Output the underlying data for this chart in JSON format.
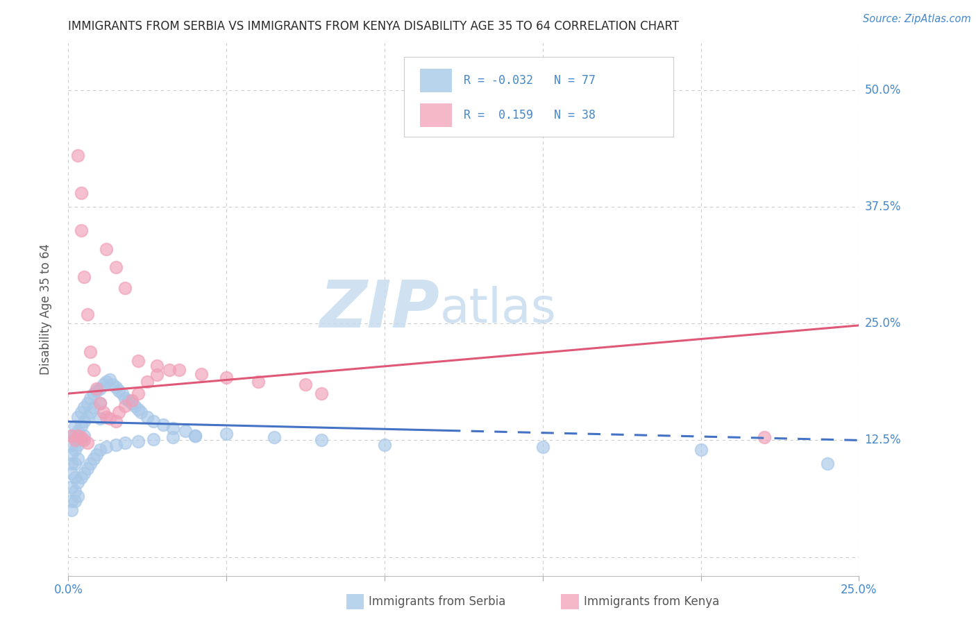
{
  "title": "IMMIGRANTS FROM SERBIA VS IMMIGRANTS FROM KENYA DISABILITY AGE 35 TO 64 CORRELATION CHART",
  "source": "Source: ZipAtlas.com",
  "ylabel": "Disability Age 35 to 64",
  "xlim": [
    0.0,
    0.25
  ],
  "ylim": [
    -0.02,
    0.55
  ],
  "ytick_positions": [
    0.0,
    0.125,
    0.25,
    0.375,
    0.5
  ],
  "ytick_labels": [
    "",
    "12.5%",
    "25.0%",
    "37.5%",
    "50.0%"
  ],
  "series": [
    {
      "name": "Immigrants from Serbia",
      "scatter_color": "#a8c8e8",
      "R": -0.032,
      "N": 77,
      "trend_color": "#4472c4",
      "trend_y0": 0.145,
      "trend_y1": 0.125,
      "trend_solid_end": 0.12,
      "legend_color": "#b8d4ec"
    },
    {
      "name": "Immigrants from Kenya",
      "scatter_color": "#f0a0b8",
      "R": 0.159,
      "N": 38,
      "trend_color": "#e05878",
      "trend_y0": 0.175,
      "trend_y1": 0.248,
      "legend_color": "#f4b8c8"
    }
  ],
  "serbia_x": [
    0.001,
    0.001,
    0.001,
    0.001,
    0.001,
    0.001,
    0.002,
    0.002,
    0.002,
    0.002,
    0.002,
    0.003,
    0.003,
    0.003,
    0.003,
    0.004,
    0.004,
    0.004,
    0.005,
    0.005,
    0.005,
    0.006,
    0.006,
    0.007,
    0.007,
    0.008,
    0.008,
    0.009,
    0.01,
    0.01,
    0.01,
    0.011,
    0.012,
    0.013,
    0.014,
    0.015,
    0.016,
    0.017,
    0.018,
    0.019,
    0.02,
    0.021,
    0.022,
    0.023,
    0.025,
    0.027,
    0.03,
    0.033,
    0.037,
    0.04,
    0.001,
    0.001,
    0.002,
    0.002,
    0.003,
    0.003,
    0.004,
    0.005,
    0.006,
    0.007,
    0.008,
    0.009,
    0.01,
    0.012,
    0.015,
    0.018,
    0.022,
    0.027,
    0.033,
    0.04,
    0.05,
    0.065,
    0.08,
    0.1,
    0.15,
    0.2,
    0.24
  ],
  "serbia_y": [
    0.13,
    0.12,
    0.11,
    0.1,
    0.09,
    0.075,
    0.14,
    0.13,
    0.115,
    0.1,
    0.085,
    0.15,
    0.135,
    0.12,
    0.105,
    0.155,
    0.14,
    0.125,
    0.16,
    0.145,
    0.13,
    0.165,
    0.15,
    0.17,
    0.155,
    0.175,
    0.16,
    0.178,
    0.18,
    0.165,
    0.148,
    0.185,
    0.188,
    0.19,
    0.185,
    0.182,
    0.178,
    0.175,
    0.17,
    0.168,
    0.165,
    0.162,
    0.158,
    0.155,
    0.15,
    0.145,
    0.142,
    0.138,
    0.135,
    0.13,
    0.06,
    0.05,
    0.07,
    0.06,
    0.08,
    0.065,
    0.085,
    0.09,
    0.095,
    0.1,
    0.105,
    0.11,
    0.115,
    0.118,
    0.12,
    0.122,
    0.124,
    0.126,
    0.128,
    0.13,
    0.132,
    0.128,
    0.125,
    0.12,
    0.118,
    0.115,
    0.1
  ],
  "kenya_x": [
    0.003,
    0.004,
    0.004,
    0.005,
    0.006,
    0.007,
    0.008,
    0.009,
    0.01,
    0.011,
    0.012,
    0.013,
    0.015,
    0.016,
    0.018,
    0.02,
    0.022,
    0.025,
    0.028,
    0.032,
    0.012,
    0.015,
    0.018,
    0.022,
    0.028,
    0.035,
    0.042,
    0.05,
    0.06,
    0.075,
    0.001,
    0.002,
    0.003,
    0.004,
    0.005,
    0.006,
    0.22,
    0.08
  ],
  "kenya_y": [
    0.43,
    0.39,
    0.35,
    0.3,
    0.26,
    0.22,
    0.2,
    0.18,
    0.165,
    0.155,
    0.15,
    0.148,
    0.145,
    0.155,
    0.162,
    0.168,
    0.175,
    0.188,
    0.195,
    0.2,
    0.33,
    0.31,
    0.288,
    0.21,
    0.205,
    0.2,
    0.196,
    0.192,
    0.188,
    0.185,
    0.13,
    0.125,
    0.13,
    0.128,
    0.125,
    0.122,
    0.128,
    0.175
  ],
  "watermark_zip_color": "#c8ddf0",
  "watermark_atlas_color": "#c8ddf0",
  "background_color": "#ffffff",
  "grid_color": "#cccccc",
  "title_color": "#2a2a2a",
  "tick_color": "#4488cc",
  "source_color": "#4488cc",
  "ylabel_color": "#555555",
  "legend_border_color": "#cccccc",
  "bottom_legend_text_color": "#555555"
}
